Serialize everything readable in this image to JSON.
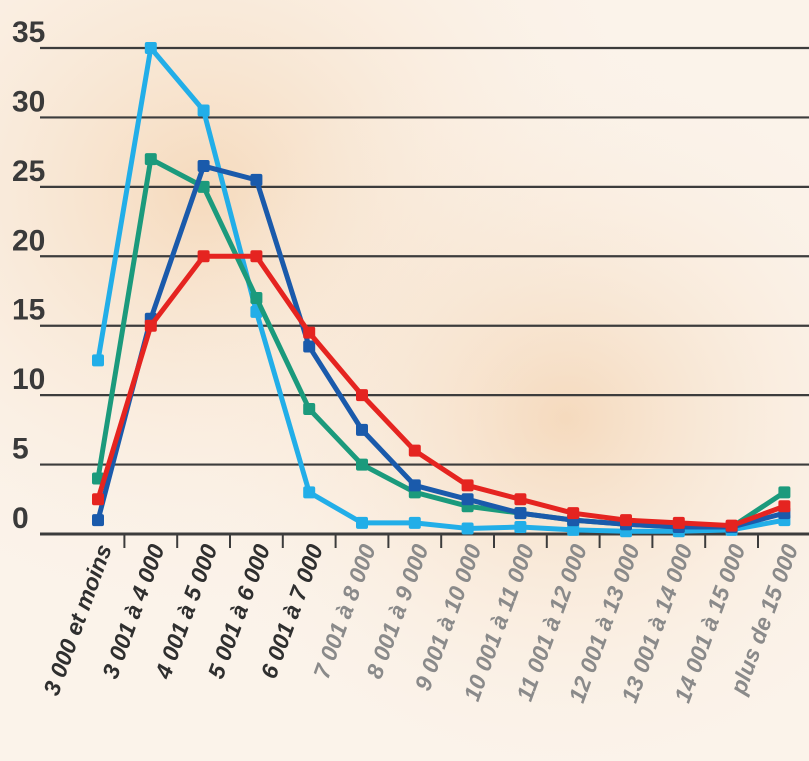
{
  "chart_data": {
    "type": "line",
    "title": "",
    "xlabel": "",
    "ylabel": "",
    "ylim": [
      0,
      35
    ],
    "yticks": [
      "0",
      "5",
      "10",
      "15",
      "20",
      "25",
      "30",
      "35"
    ],
    "grid": true,
    "legend": "none",
    "categories": [
      "3 000 et moins",
      "3 001 à 4 000",
      "4 001 à 5 000",
      "5 001 à 6 000",
      "6 001 à 7 000",
      "7 001 à 8 000",
      "8 001 à 9 000",
      "9 001 à 10 000",
      "10 001 à 11 000",
      "11 001 à 12 000",
      "12 001 à 13 000",
      "13 001 à 14 000",
      "14 001 à 15 000",
      "plus de 15 000"
    ],
    "series": [
      {
        "color": "#22aee8",
        "values": [
          12.5,
          35,
          30.5,
          16,
          3,
          0.8,
          0.8,
          0.4,
          0.5,
          0.3,
          0.2,
          0.2,
          0.3,
          1
        ]
      },
      {
        "color": "#1b9a7c",
        "values": [
          4,
          27,
          25,
          17,
          9,
          5,
          3,
          2,
          1.5,
          1,
          0.7,
          0.5,
          0.5,
          3
        ]
      },
      {
        "color": "#1a5aab",
        "values": [
          1,
          15.5,
          26.5,
          25.5,
          13.5,
          7.5,
          3.5,
          2.5,
          1.5,
          1,
          0.7,
          0.5,
          0.5,
          1.5
        ]
      },
      {
        "color": "#e52420",
        "values": [
          2.5,
          15,
          20,
          20,
          14.5,
          10,
          6,
          3.5,
          2.5,
          1.5,
          1,
          0.8,
          0.6,
          2
        ]
      }
    ]
  }
}
